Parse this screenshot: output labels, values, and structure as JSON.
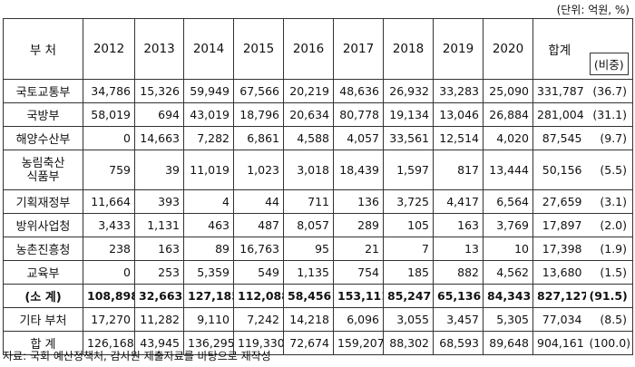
{
  "unit_note": "(단위: 억원, %)",
  "headers": {
    "dept": "부 처",
    "years": [
      "2012",
      "2013",
      "2014",
      "2015",
      "2016",
      "2017",
      "2018",
      "2019",
      "2020"
    ],
    "total": "합계",
    "ratio": "(비중)"
  },
  "rows": [
    {
      "dept": "국토교통부",
      "values": [
        "34,786",
        "15,326",
        "59,949",
        "67,566",
        "20,219",
        "48,636",
        "26,932",
        "33,283",
        "25,090"
      ],
      "total": "331,787",
      "ratio": "(36.7)"
    },
    {
      "dept": "국방부",
      "values": [
        "58,019",
        "694",
        "43,019",
        "18,796",
        "20,634",
        "80,778",
        "19,134",
        "13,046",
        "26,884"
      ],
      "total": "281,004",
      "ratio": "(31.1)"
    },
    {
      "dept": "해양수산부",
      "values": [
        "0",
        "14,663",
        "7,282",
        "6,861",
        "4,588",
        "4,057",
        "33,561",
        "12,514",
        "4,020"
      ],
      "total": "87,545",
      "ratio": "(9.7)"
    },
    {
      "dept": "농림축산\n식품부",
      "values": [
        "759",
        "39",
        "11,019",
        "1,023",
        "3,018",
        "18,439",
        "1,597",
        "817",
        "13,444"
      ],
      "total": "50,156",
      "ratio": "(5.5)"
    },
    {
      "dept": "기획재정부",
      "values": [
        "11,664",
        "393",
        "4",
        "44",
        "711",
        "136",
        "3,725",
        "4,417",
        "6,564"
      ],
      "total": "27,659",
      "ratio": "(3.1)"
    },
    {
      "dept": "방위사업청",
      "values": [
        "3,433",
        "1,131",
        "463",
        "487",
        "8,057",
        "289",
        "105",
        "163",
        "3,769"
      ],
      "total": "17,897",
      "ratio": "(2.0)"
    },
    {
      "dept": "농촌진흥청",
      "values": [
        "238",
        "163",
        "89",
        "16,763",
        "95",
        "21",
        "7",
        "13",
        "10"
      ],
      "total": "17,398",
      "ratio": "(1.9)"
    },
    {
      "dept": "교육부",
      "values": [
        "0",
        "253",
        "5,359",
        "549",
        "1,135",
        "754",
        "185",
        "882",
        "4,562"
      ],
      "total": "13,680",
      "ratio": "(1.5)"
    },
    {
      "dept": "(소 계)",
      "values": [
        "108,898",
        "32,663",
        "127,185",
        "112,088",
        "58,456",
        "153,111",
        "85,247",
        "65,136",
        "84,343"
      ],
      "total": "827,127",
      "ratio": "(91.5)"
    },
    {
      "dept": "기타 부처",
      "values": [
        "17,270",
        "11,282",
        "9,110",
        "7,242",
        "14,218",
        "6,096",
        "3,055",
        "3,457",
        "5,305"
      ],
      "total": "77,034",
      "ratio": "(8.5)"
    },
    {
      "dept": "합 계",
      "values": [
        "126,168",
        "43,945",
        "136,295",
        "119,330",
        "72,674",
        "159,207",
        "88,302",
        "68,593",
        "89,648"
      ],
      "total": "904,161",
      "ratio": "(100.0)"
    }
  ],
  "source": "자료: 국회 예산정책처, 감사원 제출자료를 바탕으로 재작성"
}
